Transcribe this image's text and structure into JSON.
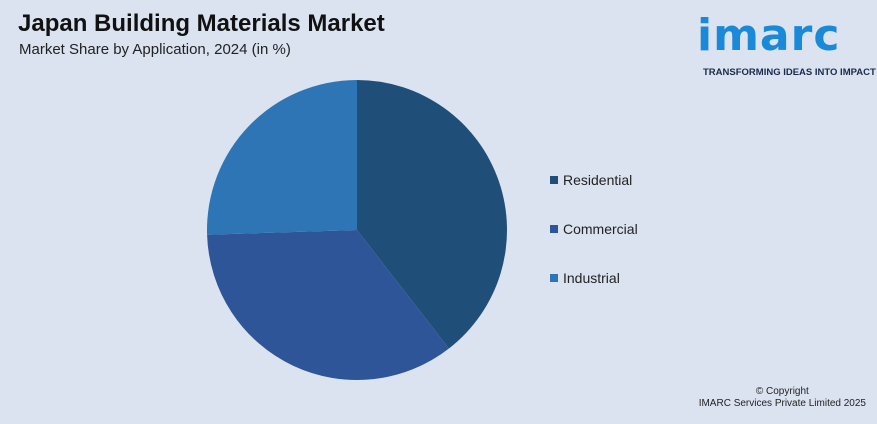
{
  "header": {
    "title": "Japan Building Materials Market",
    "subtitle": "Market Share by Application, 2024 (in %)"
  },
  "logo": {
    "wordmark": "imarc",
    "tagline": "TRANSFORMING IDEAS INTO IMPACT",
    "color": "#1a8ad8"
  },
  "chart_data": {
    "type": "pie",
    "title": "Japan Building Materials Market",
    "subtitle": "Market Share by Application, 2024 (in %)",
    "legend_position": "right",
    "series": [
      {
        "name": "Residential",
        "value": 39.5,
        "color": "#1f4e79"
      },
      {
        "name": "Commercial",
        "value": 35.0,
        "color": "#2e5597"
      },
      {
        "name": "Industrial",
        "value": 25.5,
        "color": "#2e75b6"
      }
    ]
  },
  "footer": {
    "copyright_line1": "© Copyright",
    "copyright_line2": "IMARC Services Private Limited 2025"
  }
}
